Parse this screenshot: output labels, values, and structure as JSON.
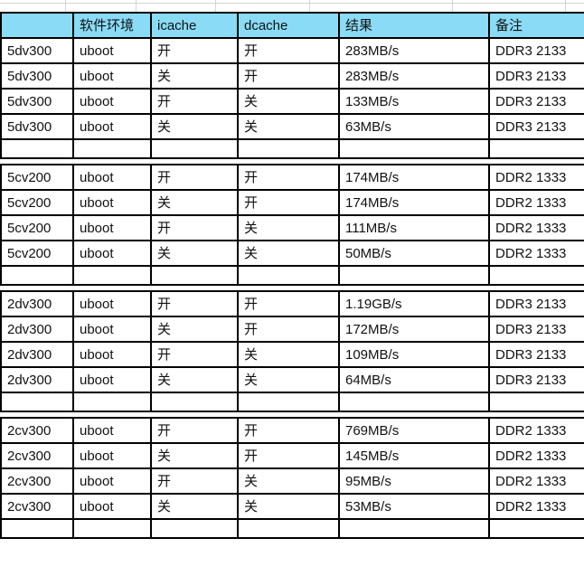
{
  "table": {
    "columns": [
      {
        "key": "chip",
        "label": ""
      },
      {
        "key": "env",
        "label": "软件环境"
      },
      {
        "key": "icache",
        "label": "icache"
      },
      {
        "key": "dcache",
        "label": "dcache"
      },
      {
        "key": "result",
        "label": "结果"
      },
      {
        "key": "note",
        "label": "备注"
      }
    ],
    "groups": [
      {
        "rows": [
          {
            "chip": "5dv300",
            "env": "uboot",
            "icache": "开",
            "dcache": "开",
            "result": "283MB/s",
            "note": "DDR3 2133",
            "highlight": "pink"
          },
          {
            "chip": "5dv300",
            "env": "uboot",
            "icache": "关",
            "dcache": "开",
            "result": "283MB/s",
            "note": "DDR3 2133",
            "highlight": "pink"
          },
          {
            "chip": "5dv300",
            "env": "uboot",
            "icache": "开",
            "dcache": "关",
            "result": "133MB/s",
            "note": "DDR3 2133",
            "highlight": null
          },
          {
            "chip": "5dv300",
            "env": "uboot",
            "icache": "关",
            "dcache": "关",
            "result": "63MB/s",
            "note": "DDR3 2133",
            "highlight": null
          }
        ]
      },
      {
        "rows": [
          {
            "chip": "5cv200",
            "env": "uboot",
            "icache": "开",
            "dcache": "开",
            "result": "174MB/s",
            "note": "DDR2 1333",
            "highlight": "pink"
          },
          {
            "chip": "5cv200",
            "env": "uboot",
            "icache": "关",
            "dcache": "开",
            "result": "174MB/s",
            "note": "DDR2 1333",
            "highlight": "pink"
          },
          {
            "chip": "5cv200",
            "env": "uboot",
            "icache": "开",
            "dcache": "关",
            "result": "111MB/s",
            "note": "DDR2 1333",
            "highlight": null
          },
          {
            "chip": "5cv200",
            "env": "uboot",
            "icache": "关",
            "dcache": "关",
            "result": "50MB/s",
            "note": "DDR2 1333",
            "highlight": null
          }
        ]
      },
      {
        "rows": [
          {
            "chip": "2dv300",
            "env": "uboot",
            "icache": "开",
            "dcache": "开",
            "result": "1.19GB/s",
            "note": "DDR3 2133",
            "highlight": "green"
          },
          {
            "chip": "2dv300",
            "env": "uboot",
            "icache": "关",
            "dcache": "开",
            "result": "172MB/s",
            "note": "DDR3 2133",
            "highlight": "green"
          },
          {
            "chip": "2dv300",
            "env": "uboot",
            "icache": "开",
            "dcache": "关",
            "result": "109MB/s",
            "note": "DDR3 2133",
            "highlight": null
          },
          {
            "chip": "2dv300",
            "env": "uboot",
            "icache": "关",
            "dcache": "关",
            "result": "64MB/s",
            "note": "DDR3 2133",
            "highlight": null
          }
        ]
      },
      {
        "rows": [
          {
            "chip": "2cv300",
            "env": "uboot",
            "icache": "开",
            "dcache": "开",
            "result": "769MB/s",
            "note": "DDR2 1333",
            "highlight": "green"
          },
          {
            "chip": "2cv300",
            "env": "uboot",
            "icache": "关",
            "dcache": "开",
            "result": "145MB/s",
            "note": "DDR2 1333",
            "highlight": "green"
          },
          {
            "chip": "2cv300",
            "env": "uboot",
            "icache": "开",
            "dcache": "关",
            "result": "95MB/s",
            "note": "DDR2 1333",
            "highlight": null
          },
          {
            "chip": "2cv300",
            "env": "uboot",
            "icache": "关",
            "dcache": "关",
            "result": "53MB/s",
            "note": "DDR2 1333",
            "highlight": null
          }
        ]
      }
    ]
  },
  "colors": {
    "header_bg": "#8ADCF6",
    "highlight_pink": "#FF9894",
    "highlight_green": "#8DC63F",
    "border": "#000000",
    "grid_line": "#D4D4D4",
    "text": "#111111",
    "row_bg": "#FFFFFF"
  }
}
